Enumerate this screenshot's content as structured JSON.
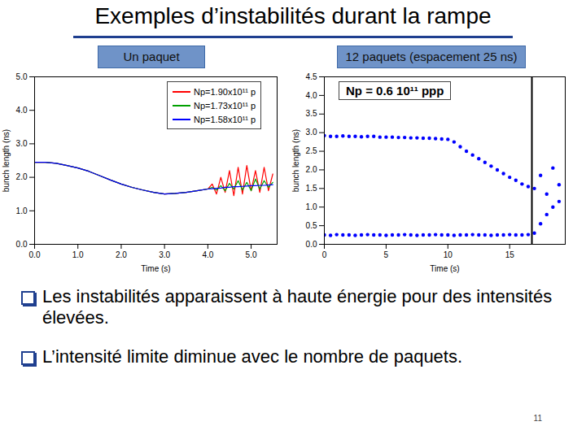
{
  "slide": {
    "title": "Exemples d’instabilités durant la rampe",
    "bullets": [
      "Les instabilités apparaissent à haute énergie pour des intensités élevées.",
      "L’intensité limite diminue avec le nombre de paquets."
    ],
    "page": 11
  },
  "chart_data": [
    {
      "type": "line",
      "title": "Un paquet",
      "xlabel": "Time (s)",
      "ylabel": "bunch length (ns)",
      "x": [
        0,
        0.25,
        0.5,
        0.75,
        1,
        1.25,
        1.5,
        1.75,
        2,
        2.25,
        2.5,
        2.75,
        3,
        3.25,
        3.5,
        3.75,
        4,
        4.1,
        4.2,
        4.3,
        4.4,
        4.5,
        4.6,
        4.7,
        4.8,
        4.9,
        5,
        5.1,
        5.2,
        5.3,
        5.4,
        5.5
      ],
      "series": [
        {
          "name": "Np=1.90x10¹¹ p",
          "color": "#ff0000",
          "values": [
            2.45,
            2.45,
            2.42,
            2.35,
            2.28,
            2.18,
            2.05,
            1.92,
            1.8,
            1.7,
            1.62,
            1.55,
            1.5,
            1.52,
            1.55,
            1.6,
            1.65,
            1.8,
            1.5,
            2.0,
            1.55,
            2.2,
            1.45,
            2.3,
            1.5,
            2.35,
            1.6,
            2.2,
            1.55,
            2.3,
            1.6,
            2.1
          ]
        },
        {
          "name": "Np=1.73x10¹¹ p",
          "color": "#00a000",
          "values": [
            2.45,
            2.45,
            2.42,
            2.35,
            2.28,
            2.18,
            2.05,
            1.92,
            1.8,
            1.7,
            1.62,
            1.55,
            1.5,
            1.52,
            1.55,
            1.6,
            1.65,
            1.7,
            1.62,
            1.75,
            1.6,
            1.82,
            1.65,
            1.9,
            1.62,
            1.85,
            1.6,
            1.95,
            1.65,
            1.9,
            1.7,
            1.85
          ]
        },
        {
          "name": "Np=1.58x10¹¹ p",
          "color": "#0000ff",
          "values": [
            2.45,
            2.45,
            2.42,
            2.35,
            2.28,
            2.18,
            2.05,
            1.92,
            1.8,
            1.7,
            1.62,
            1.55,
            1.5,
            1.52,
            1.55,
            1.6,
            1.65,
            1.66,
            1.67,
            1.68,
            1.7,
            1.7,
            1.72,
            1.72,
            1.73,
            1.74,
            1.75,
            1.75,
            1.76,
            1.76,
            1.77,
            1.78
          ]
        }
      ],
      "xlim": [
        0,
        5.6
      ],
      "ylim": [
        0,
        5
      ],
      "xticks": [
        0,
        1,
        2,
        3,
        4,
        5
      ],
      "yticks": [
        0,
        1,
        2,
        3,
        4,
        5
      ],
      "legend": "top-right"
    },
    {
      "type": "scatter",
      "title": "12 paquets (espacement 25 ns)",
      "xlabel": "Time (s)",
      "ylabel": "bunch length (ns)",
      "annotation": "Np = 0.6 10¹¹ ppp",
      "vline": 16.8,
      "marker": "dot",
      "x": [
        0,
        0.5,
        1,
        1.5,
        2,
        2.5,
        3,
        3.5,
        4,
        4.5,
        5,
        5.5,
        6,
        6.5,
        7,
        7.5,
        8,
        8.5,
        9,
        9.5,
        10,
        10.5,
        11,
        11.5,
        12,
        12.5,
        13,
        13.5,
        14,
        14.5,
        15,
        15.5,
        16,
        16.5,
        17,
        17.5,
        18,
        18.5,
        19
      ],
      "series": [
        {
          "color": "#0000ff",
          "values": [
            2.92,
            2.9,
            2.9,
            2.91,
            2.9,
            2.9,
            2.89,
            2.9,
            2.9,
            2.88,
            2.88,
            2.88,
            2.87,
            2.87,
            2.86,
            2.86,
            2.85,
            2.85,
            2.84,
            2.83,
            2.82,
            2.75,
            2.62,
            2.5,
            2.4,
            2.3,
            2.2,
            2.1,
            2.0,
            1.9,
            1.8,
            1.72,
            1.62,
            1.55,
            1.5,
            1.85,
            1.35,
            2.05,
            1.6
          ]
        },
        {
          "color": "#0000ff",
          "values": [
            0.25,
            0.24,
            0.26,
            0.25,
            0.25,
            0.24,
            0.25,
            0.26,
            0.25,
            0.25,
            0.24,
            0.25,
            0.25,
            0.26,
            0.25,
            0.24,
            0.25,
            0.25,
            0.26,
            0.25,
            0.25,
            0.24,
            0.25,
            0.25,
            0.26,
            0.25,
            0.25,
            0.24,
            0.25,
            0.25,
            0.26,
            0.25,
            0.25,
            0.26,
            0.3,
            0.55,
            0.8,
            1.0,
            1.15
          ]
        }
      ],
      "xlim": [
        0,
        19.5
      ],
      "ylim": [
        0,
        4.5
      ],
      "xticks": [
        0,
        5,
        10,
        15
      ],
      "yticks": [
        0,
        0.5,
        1,
        1.5,
        2,
        2.5,
        3,
        3.5,
        4,
        4.5
      ]
    }
  ]
}
